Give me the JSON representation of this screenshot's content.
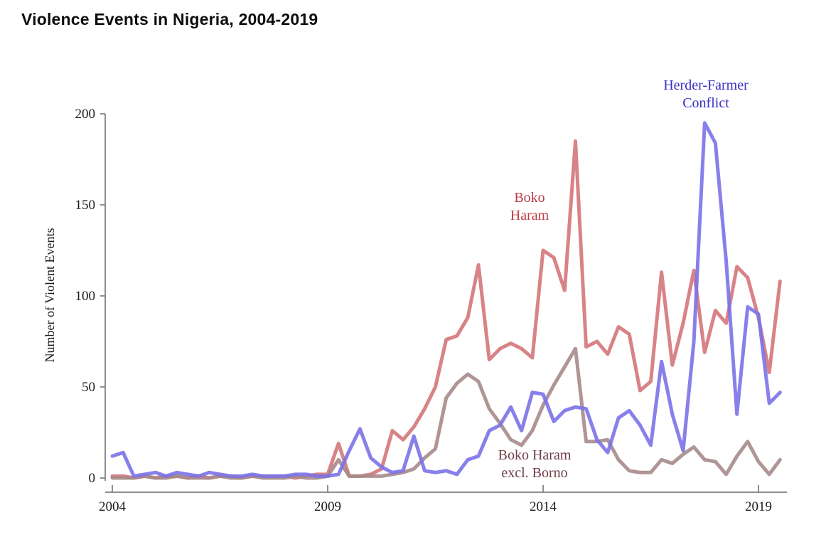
{
  "header": {
    "title": "Violence Events in Nigeria, 2004-2019"
  },
  "chart_data": {
    "type": "line",
    "title": "Violence Events in Nigeria, 2004-2019",
    "xlabel": "",
    "ylabel": "Number of Violent Events",
    "x_start": 2004,
    "x_step": 0.25,
    "x_unit": "quarterly",
    "xlim": [
      2004,
      2019.75
    ],
    "ylim": [
      0,
      200
    ],
    "x_ticks": [
      "2004",
      "2009",
      "2014",
      "2019"
    ],
    "x_tick_years": [
      2004,
      2009,
      2014,
      2019
    ],
    "y_ticks": [
      "0",
      "50",
      "100",
      "150",
      "200"
    ],
    "y_tick_values": [
      0,
      50,
      100,
      150,
      200
    ],
    "grid": false,
    "legend_position": "inline-annotations",
    "axis_color": "#8f8f8f",
    "series": [
      {
        "name": "Boko Haram",
        "line_color": "#d4767a",
        "label_color": "#bd3e46",
        "label_lines": [
          "Boko",
          "Haram"
        ],
        "values": [
          1,
          1,
          0,
          1,
          0,
          1,
          1,
          0,
          1,
          0,
          1,
          1,
          0,
          1,
          1,
          1,
          1,
          0,
          1,
          2,
          2,
          19,
          1,
          1,
          2,
          5,
          26,
          21,
          28,
          38,
          50,
          76,
          78,
          88,
          117,
          65,
          71,
          74,
          71,
          66,
          125,
          121,
          103,
          185,
          72,
          75,
          68,
          83,
          79,
          48,
          53,
          113,
          62,
          85,
          114,
          69,
          92,
          85,
          116,
          110,
          88,
          58,
          108
        ]
      },
      {
        "name": "Boko Haram excl. Borno",
        "line_color": "#a68989",
        "label_color": "#703e46",
        "label_lines": [
          "Boko Haram",
          "excl. Borno"
        ],
        "values": [
          0,
          0,
          0,
          1,
          0,
          0,
          1,
          0,
          0,
          0,
          1,
          0,
          0,
          1,
          0,
          0,
          0,
          1,
          0,
          0,
          1,
          10,
          1,
          1,
          1,
          1,
          2,
          3,
          5,
          11,
          16,
          44,
          52,
          57,
          53,
          38,
          30,
          21,
          18,
          26,
          40,
          51,
          61,
          71,
          20,
          20,
          21,
          10,
          4,
          3,
          3,
          10,
          8,
          13,
          17,
          10,
          9,
          2,
          12,
          20,
          9,
          2,
          10
        ]
      },
      {
        "name": "Herder-Farmer Conflict",
        "line_color": "#7b72e8",
        "label_color": "#3a31c3",
        "label_lines": [
          "Herder-Farmer",
          "Conflict"
        ],
        "values": [
          12,
          14,
          1,
          2,
          3,
          1,
          3,
          2,
          1,
          3,
          2,
          1,
          1,
          2,
          1,
          1,
          1,
          2,
          2,
          1,
          1,
          2,
          15,
          27,
          11,
          6,
          3,
          4,
          23,
          4,
          3,
          4,
          2,
          10,
          12,
          26,
          29,
          39,
          26,
          47,
          46,
          31,
          37,
          39,
          38,
          21,
          14,
          33,
          37,
          29,
          18,
          64,
          35,
          15,
          75,
          195,
          184,
          119,
          35,
          94,
          90,
          41,
          47
        ]
      }
    ]
  }
}
